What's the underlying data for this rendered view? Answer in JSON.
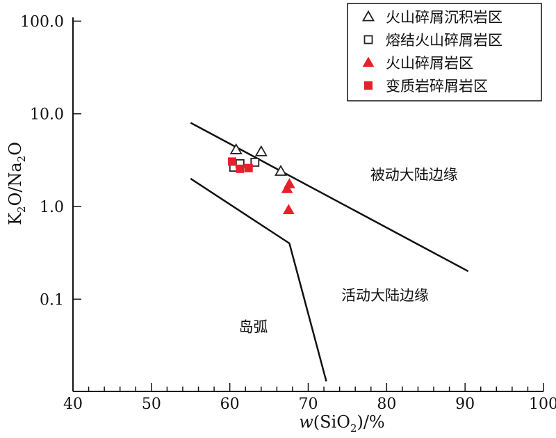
{
  "chart_data": {
    "type": "scatter",
    "xlabel": {
      "prefix": "w",
      "open": "(SiO",
      "sub": "2",
      "close": ")/%"
    },
    "ylabel": {
      "k": "K",
      "k_sub": "2",
      "mid": "O/Na",
      "na_sub": "2",
      "end": "O"
    },
    "xlim": [
      40,
      100
    ],
    "ylim": [
      0.013,
      100
    ],
    "yscale": "log",
    "x_ticks": [
      40,
      50,
      60,
      70,
      80,
      90,
      100
    ],
    "x_tick_labels": [
      "40",
      "50",
      "60",
      "70",
      "80",
      "90",
      "100"
    ],
    "y_ticks": [
      0.1,
      1,
      10,
      100
    ],
    "y_tick_labels": [
      "0.1",
      "1.0",
      "10.0",
      "100.0"
    ],
    "legend_position": "top-right",
    "series": [
      {
        "name": "火山碎屑沉积岩区",
        "marker": "triangle-open",
        "color": "#222222",
        "points": [
          [
            60.8,
            4.1
          ],
          [
            64.0,
            3.9
          ],
          [
            66.5,
            2.4
          ]
        ]
      },
      {
        "name": "熔结火山碎屑岩区",
        "marker": "square-open",
        "color": "#222222",
        "points": [
          [
            60.5,
            2.65
          ],
          [
            61.3,
            2.9
          ],
          [
            63.2,
            3.0
          ]
        ]
      },
      {
        "name": "火山碎屑岩区",
        "marker": "triangle-filled",
        "color": "#e8202a",
        "points": [
          [
            67.3,
            1.55
          ],
          [
            67.6,
            1.75
          ],
          [
            67.5,
            0.92
          ]
        ]
      },
      {
        "name": "变质岩碎屑岩区",
        "marker": "square-filled",
        "color": "#e8202a",
        "points": [
          [
            60.3,
            3.05
          ],
          [
            61.3,
            2.55
          ],
          [
            62.4,
            2.6
          ]
        ]
      }
    ],
    "boundary_lines": [
      {
        "points": [
          [
            55,
            8.0
          ],
          [
            90.4,
            0.2
          ]
        ]
      },
      {
        "points": [
          [
            55,
            2.0
          ],
          [
            67.6,
            0.4
          ],
          [
            72.3,
            0.013
          ]
        ]
      }
    ],
    "region_labels": [
      {
        "text": "被动大陆边缘",
        "x": 83.5,
        "y": 2.2
      },
      {
        "text": "活动大陆边缘",
        "x": 79.8,
        "y": 0.11
      },
      {
        "text": "岛弧",
        "x": 63.0,
        "y": 0.05
      }
    ]
  }
}
